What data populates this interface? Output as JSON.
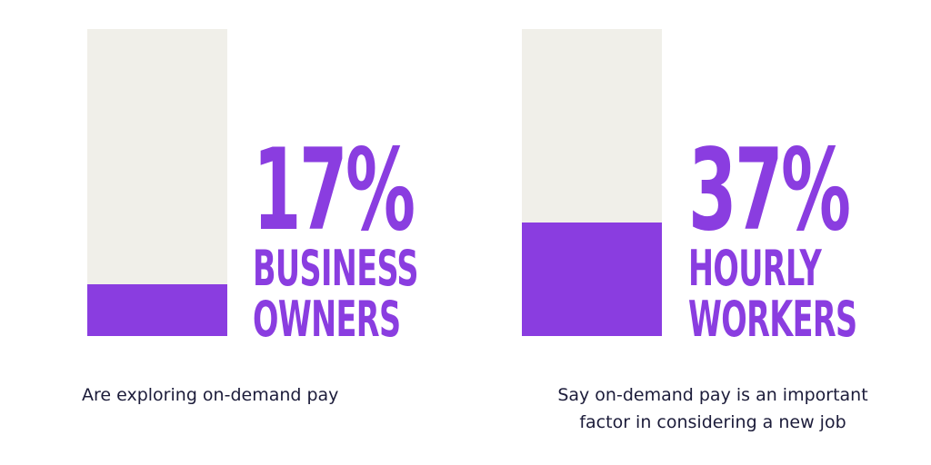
{
  "chart_data": [
    {
      "type": "bar",
      "categories": [
        "BUSINESS OWNERS"
      ],
      "values": [
        17
      ],
      "value_labels": [
        "17%"
      ],
      "ylim": [
        0,
        100
      ],
      "color": "#8a3de0",
      "track_color": "#f0efe9",
      "caption": "Are exploring on-demand pay"
    },
    {
      "type": "bar",
      "categories": [
        "HOURLY WORKERS"
      ],
      "values": [
        37
      ],
      "value_labels": [
        "37%"
      ],
      "ylim": [
        0,
        100
      ],
      "color": "#8a3de0",
      "track_color": "#f0efe9",
      "caption": "Say on-demand pay is an important factor in considering a new job"
    }
  ]
}
